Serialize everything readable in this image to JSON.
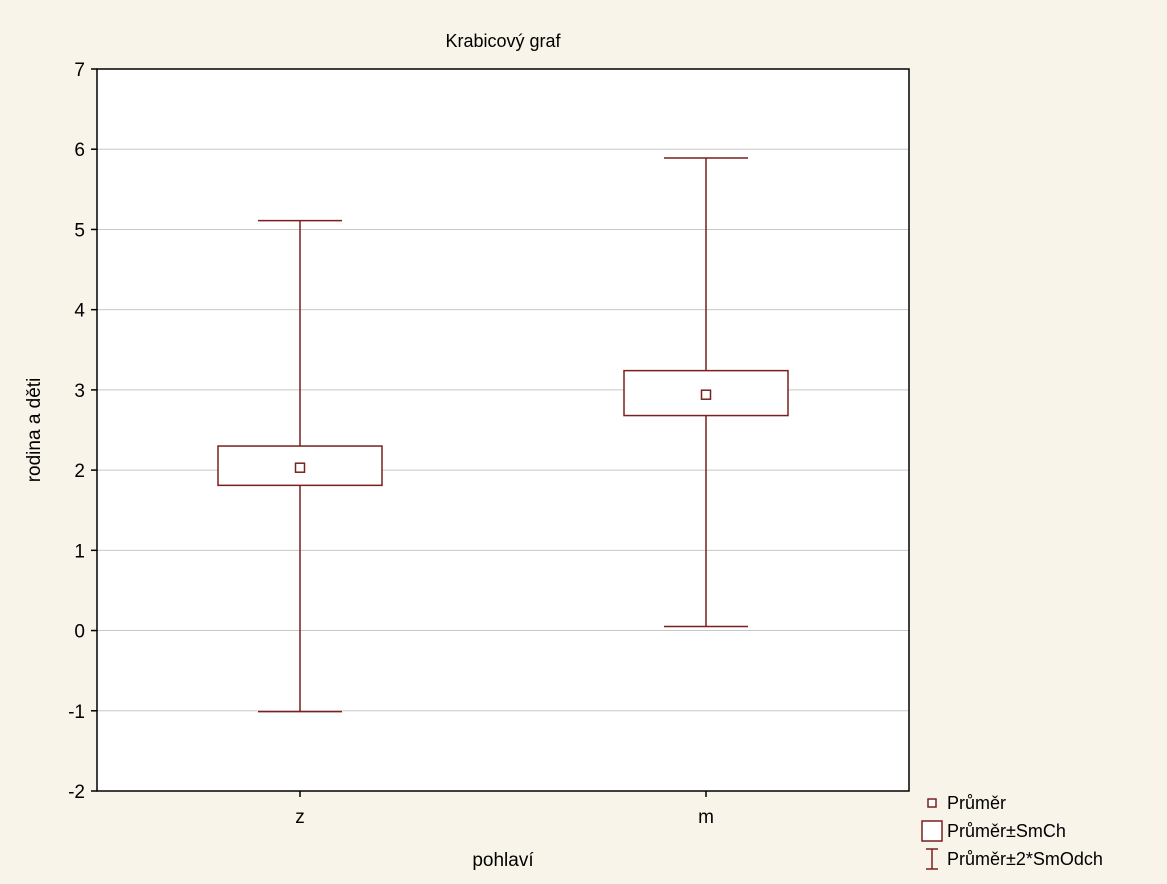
{
  "chart_data": {
    "type": "box",
    "title": "Krabicový graf",
    "xlabel": "pohlaví",
    "ylabel": "rodina a děti",
    "categories": [
      "z",
      "m"
    ],
    "ylim": [
      -2,
      7
    ],
    "yticks": [
      -2,
      -1,
      0,
      1,
      2,
      3,
      4,
      5,
      6,
      7
    ],
    "grid": true,
    "series": [
      {
        "category": "z",
        "mean": 2.03,
        "mean_minus_se": 1.81,
        "mean_plus_se": 2.3,
        "mean_minus_2sd": -1.01,
        "mean_plus_2sd": 5.11
      },
      {
        "category": "m",
        "mean": 2.94,
        "mean_minus_se": 2.68,
        "mean_plus_se": 3.24,
        "mean_minus_2sd": 0.05,
        "mean_plus_2sd": 5.89
      }
    ],
    "legend": {
      "position": "bottom-right",
      "items": [
        {
          "symbol": "square-marker",
          "label": "Průměr"
        },
        {
          "symbol": "box",
          "label": "Průměr±SmCh"
        },
        {
          "symbol": "whisker",
          "label": "Průměr±2*SmOdch"
        }
      ]
    },
    "colors": {
      "background": "#f9f4ea",
      "plot_area": "#ffffff",
      "mark": "#7a1f1f",
      "grid": "#c8c8c8",
      "axis": "#000000"
    }
  }
}
